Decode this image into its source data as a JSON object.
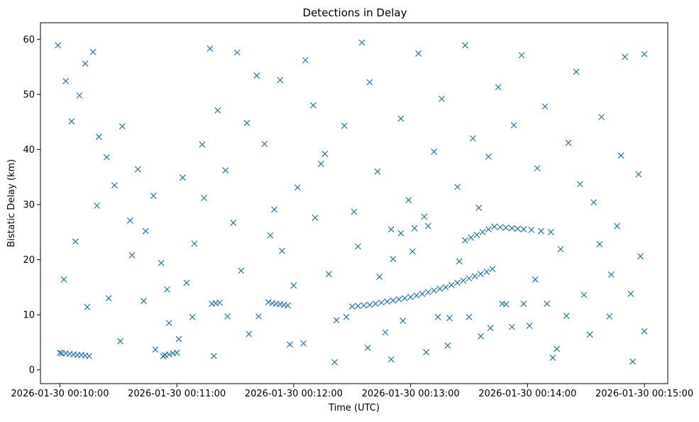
{
  "chart_data": {
    "type": "scatter",
    "title": "Detections in Delay",
    "xlabel": "Time (UTC)",
    "ylabel": "Bistatic Delay (km)",
    "x_unit": "time",
    "xlim": [
      "2026-01-30 00:09:50",
      "2026-01-30 00:15:12"
    ],
    "ylim": [
      -2.5,
      63
    ],
    "x_ticks": [
      {
        "value": "2026-01-30 00:10:00",
        "label": "2026-01-30 00:10:00"
      },
      {
        "value": "2026-01-30 00:11:00",
        "label": "2026-01-30 00:11:00"
      },
      {
        "value": "2026-01-30 00:12:00",
        "label": "2026-01-30 00:12:00"
      },
      {
        "value": "2026-01-30 00:13:00",
        "label": "2026-01-30 00:13:00"
      },
      {
        "value": "2026-01-30 00:14:00",
        "label": "2026-01-30 00:14:00"
      },
      {
        "value": "2026-01-30 00:15:00",
        "label": "2026-01-30 00:15:00"
      }
    ],
    "y_ticks": [
      0,
      10,
      20,
      30,
      40,
      50,
      60
    ],
    "grid": false,
    "marker": "x",
    "colors": {
      "series": "#1f77b4"
    },
    "series": [
      {
        "points": [
          {
            "x": "2026-01-30 00:10:00",
            "y": 3.1
          },
          {
            "x": "2026-01-30 00:10:01",
            "y": 3.0
          },
          {
            "x": "2026-01-30 00:10:03",
            "y": 3.0
          },
          {
            "x": "2026-01-30 00:10:05",
            "y": 2.9
          },
          {
            "x": "2026-01-30 00:10:07",
            "y": 2.8
          },
          {
            "x": "2026-01-30 00:10:09",
            "y": 2.7
          },
          {
            "x": "2026-01-30 00:10:11",
            "y": 2.7
          },
          {
            "x": "2026-01-30 00:10:13",
            "y": 2.6
          },
          {
            "x": "2026-01-30 00:10:15",
            "y": 2.5
          },
          {
            "x": "2026-01-30 00:10:53",
            "y": 2.5
          },
          {
            "x": "2026-01-30 00:10:54",
            "y": 2.7
          },
          {
            "x": "2026-01-30 00:10:56",
            "y": 2.8
          },
          {
            "x": "2026-01-30 00:10:58",
            "y": 3.0
          },
          {
            "x": "2026-01-30 00:11:00",
            "y": 3.1
          },
          {
            "x": "2026-01-30 00:11:18",
            "y": 12.0
          },
          {
            "x": "2026-01-30 00:11:20",
            "y": 12.1
          },
          {
            "x": "2026-01-30 00:11:22",
            "y": 12.2
          },
          {
            "x": "2026-01-30 00:11:47",
            "y": 12.3
          },
          {
            "x": "2026-01-30 00:11:49",
            "y": 12.1
          },
          {
            "x": "2026-01-30 00:11:51",
            "y": 12.0
          },
          {
            "x": "2026-01-30 00:11:53",
            "y": 11.9
          },
          {
            "x": "2026-01-30 00:11:55",
            "y": 11.8
          },
          {
            "x": "2026-01-30 00:11:57",
            "y": 11.7
          },
          {
            "x": "2026-01-30 00:12:30",
            "y": 11.5
          },
          {
            "x": "2026-01-30 00:12:33",
            "y": 11.6
          },
          {
            "x": "2026-01-30 00:12:36",
            "y": 11.7
          },
          {
            "x": "2026-01-30 00:12:39",
            "y": 11.8
          },
          {
            "x": "2026-01-30 00:12:42",
            "y": 12.0
          },
          {
            "x": "2026-01-30 00:12:45",
            "y": 12.2
          },
          {
            "x": "2026-01-30 00:12:48",
            "y": 12.4
          },
          {
            "x": "2026-01-30 00:12:51",
            "y": 12.6
          },
          {
            "x": "2026-01-30 00:12:54",
            "y": 12.8
          },
          {
            "x": "2026-01-30 00:12:57",
            "y": 13.0
          },
          {
            "x": "2026-01-30 00:13:00",
            "y": 13.2
          },
          {
            "x": "2026-01-30 00:13:03",
            "y": 13.5
          },
          {
            "x": "2026-01-30 00:13:06",
            "y": 13.8
          },
          {
            "x": "2026-01-30 00:13:09",
            "y": 14.1
          },
          {
            "x": "2026-01-30 00:13:12",
            "y": 14.4
          },
          {
            "x": "2026-01-30 00:13:15",
            "y": 14.7
          },
          {
            "x": "2026-01-30 00:13:18",
            "y": 15.0
          },
          {
            "x": "2026-01-30 00:13:21",
            "y": 15.4
          },
          {
            "x": "2026-01-30 00:13:24",
            "y": 15.8
          },
          {
            "x": "2026-01-30 00:13:27",
            "y": 16.2
          },
          {
            "x": "2026-01-30 00:13:30",
            "y": 16.6
          },
          {
            "x": "2026-01-30 00:13:33",
            "y": 17.0
          },
          {
            "x": "2026-01-30 00:13:36",
            "y": 17.4
          },
          {
            "x": "2026-01-30 00:13:39",
            "y": 17.8
          },
          {
            "x": "2026-01-30 00:13:42",
            "y": 18.3
          },
          {
            "x": "2026-01-30 00:13:28",
            "y": 23.5
          },
          {
            "x": "2026-01-30 00:13:31",
            "y": 24.0
          },
          {
            "x": "2026-01-30 00:13:34",
            "y": 24.5
          },
          {
            "x": "2026-01-30 00:13:37",
            "y": 25.0
          },
          {
            "x": "2026-01-30 00:13:40",
            "y": 25.5
          },
          {
            "x": "2026-01-30 00:13:43",
            "y": 26.0
          },
          {
            "x": "2026-01-30 00:13:46",
            "y": 25.9
          },
          {
            "x": "2026-01-30 00:13:49",
            "y": 25.8
          },
          {
            "x": "2026-01-30 00:13:52",
            "y": 25.7
          },
          {
            "x": "2026-01-30 00:13:55",
            "y": 25.6
          },
          {
            "x": "2026-01-30 00:13:58",
            "y": 25.5
          },
          {
            "x": "2026-01-30 00:14:02",
            "y": 25.4
          },
          {
            "x": "2026-01-30 00:14:07",
            "y": 25.2
          },
          {
            "x": "2026-01-30 00:14:12",
            "y": 25.0
          },
          {
            "x": "2026-01-30 00:12:50",
            "y": 25.5
          },
          {
            "x": "2026-01-30 00:12:55",
            "y": 24.8
          },
          {
            "x": "2026-01-30 00:13:02",
            "y": 25.7
          },
          {
            "x": "2026-01-30 00:13:09",
            "y": 26.1
          },
          {
            "x": "2026-01-30 00:09:59",
            "y": 58.9
          },
          {
            "x": "2026-01-30 00:10:03",
            "y": 52.4
          },
          {
            "x": "2026-01-30 00:10:06",
            "y": 45.1
          },
          {
            "x": "2026-01-30 00:10:10",
            "y": 49.8
          },
          {
            "x": "2026-01-30 00:10:13",
            "y": 55.6
          },
          {
            "x": "2026-01-30 00:10:17",
            "y": 57.7
          },
          {
            "x": "2026-01-30 00:10:20",
            "y": 42.3
          },
          {
            "x": "2026-01-30 00:10:24",
            "y": 38.6
          },
          {
            "x": "2026-01-30 00:10:28",
            "y": 33.5
          },
          {
            "x": "2026-01-30 00:10:32",
            "y": 44.2
          },
          {
            "x": "2026-01-30 00:10:36",
            "y": 27.1
          },
          {
            "x": "2026-01-30 00:10:40",
            "y": 36.4
          },
          {
            "x": "2026-01-30 00:10:44",
            "y": 25.2
          },
          {
            "x": "2026-01-30 00:10:48",
            "y": 31.6
          },
          {
            "x": "2026-01-30 00:10:52",
            "y": 19.4
          },
          {
            "x": "2026-01-30 00:10:56",
            "y": 8.5
          },
          {
            "x": "2026-01-30 00:11:01",
            "y": 5.6
          },
          {
            "x": "2026-01-30 00:11:05",
            "y": 15.8
          },
          {
            "x": "2026-01-30 00:11:09",
            "y": 22.9
          },
          {
            "x": "2026-01-30 00:11:13",
            "y": 40.9
          },
          {
            "x": "2026-01-30 00:11:17",
            "y": 58.3
          },
          {
            "x": "2026-01-30 00:11:21",
            "y": 47.1
          },
          {
            "x": "2026-01-30 00:11:25",
            "y": 36.2
          },
          {
            "x": "2026-01-30 00:11:29",
            "y": 26.7
          },
          {
            "x": "2026-01-30 00:11:33",
            "y": 18.0
          },
          {
            "x": "2026-01-30 00:11:37",
            "y": 6.5
          },
          {
            "x": "2026-01-30 00:11:41",
            "y": 53.4
          },
          {
            "x": "2026-01-30 00:11:45",
            "y": 41.0
          },
          {
            "x": "2026-01-30 00:11:50",
            "y": 29.1
          },
          {
            "x": "2026-01-30 00:11:54",
            "y": 21.6
          },
          {
            "x": "2026-01-30 00:11:58",
            "y": 4.6
          },
          {
            "x": "2026-01-30 00:12:02",
            "y": 33.1
          },
          {
            "x": "2026-01-30 00:12:06",
            "y": 56.2
          },
          {
            "x": "2026-01-30 00:12:10",
            "y": 48.0
          },
          {
            "x": "2026-01-30 00:12:14",
            "y": 37.4
          },
          {
            "x": "2026-01-30 00:12:18",
            "y": 17.4
          },
          {
            "x": "2026-01-30 00:12:22",
            "y": 9.0
          },
          {
            "x": "2026-01-30 00:12:26",
            "y": 44.3
          },
          {
            "x": "2026-01-30 00:12:31",
            "y": 28.7
          },
          {
            "x": "2026-01-30 00:12:35",
            "y": 59.4
          },
          {
            "x": "2026-01-30 00:12:39",
            "y": 52.2
          },
          {
            "x": "2026-01-30 00:12:43",
            "y": 36.0
          },
          {
            "x": "2026-01-30 00:12:47",
            "y": 6.8
          },
          {
            "x": "2026-01-30 00:12:51",
            "y": 20.1
          },
          {
            "x": "2026-01-30 00:12:55",
            "y": 45.6
          },
          {
            "x": "2026-01-30 00:12:59",
            "y": 30.8
          },
          {
            "x": "2026-01-30 00:13:04",
            "y": 57.4
          },
          {
            "x": "2026-01-30 00:13:08",
            "y": 3.2
          },
          {
            "x": "2026-01-30 00:13:12",
            "y": 39.6
          },
          {
            "x": "2026-01-30 00:13:16",
            "y": 49.2
          },
          {
            "x": "2026-01-30 00:13:20",
            "y": 9.4
          },
          {
            "x": "2026-01-30 00:13:24",
            "y": 33.2
          },
          {
            "x": "2026-01-30 00:13:28",
            "y": 58.9
          },
          {
            "x": "2026-01-30 00:13:32",
            "y": 42.0
          },
          {
            "x": "2026-01-30 00:13:36",
            "y": 6.1
          },
          {
            "x": "2026-01-30 00:13:40",
            "y": 38.7
          },
          {
            "x": "2026-01-30 00:13:45",
            "y": 51.3
          },
          {
            "x": "2026-01-30 00:13:49",
            "y": 11.9
          },
          {
            "x": "2026-01-30 00:13:53",
            "y": 44.4
          },
          {
            "x": "2026-01-30 00:13:57",
            "y": 57.1
          },
          {
            "x": "2026-01-30 00:14:01",
            "y": 8.0
          },
          {
            "x": "2026-01-30 00:14:05",
            "y": 36.6
          },
          {
            "x": "2026-01-30 00:14:09",
            "y": 47.8
          },
          {
            "x": "2026-01-30 00:14:13",
            "y": 2.2
          },
          {
            "x": "2026-01-30 00:14:17",
            "y": 21.9
          },
          {
            "x": "2026-01-30 00:14:21",
            "y": 41.2
          },
          {
            "x": "2026-01-30 00:14:25",
            "y": 54.1
          },
          {
            "x": "2026-01-30 00:14:29",
            "y": 13.6
          },
          {
            "x": "2026-01-30 00:14:34",
            "y": 30.4
          },
          {
            "x": "2026-01-30 00:14:38",
            "y": 45.9
          },
          {
            "x": "2026-01-30 00:14:42",
            "y": 9.7
          },
          {
            "x": "2026-01-30 00:14:46",
            "y": 26.1
          },
          {
            "x": "2026-01-30 00:14:50",
            "y": 56.8
          },
          {
            "x": "2026-01-30 00:14:54",
            "y": 1.5
          },
          {
            "x": "2026-01-30 00:14:58",
            "y": 20.6
          },
          {
            "x": "2026-01-30 00:15:00",
            "y": 57.3
          },
          {
            "x": "2026-01-30 00:10:02",
            "y": 16.4
          },
          {
            "x": "2026-01-30 00:10:08",
            "y": 23.3
          },
          {
            "x": "2026-01-30 00:10:14",
            "y": 11.4
          },
          {
            "x": "2026-01-30 00:10:19",
            "y": 29.8
          },
          {
            "x": "2026-01-30 00:10:25",
            "y": 13.0
          },
          {
            "x": "2026-01-30 00:10:31",
            "y": 5.2
          },
          {
            "x": "2026-01-30 00:10:37",
            "y": 20.8
          },
          {
            "x": "2026-01-30 00:10:43",
            "y": 12.5
          },
          {
            "x": "2026-01-30 00:10:49",
            "y": 3.7
          },
          {
            "x": "2026-01-30 00:10:55",
            "y": 14.6
          },
          {
            "x": "2026-01-30 00:11:03",
            "y": 34.9
          },
          {
            "x": "2026-01-30 00:11:08",
            "y": 9.6
          },
          {
            "x": "2026-01-30 00:11:14",
            "y": 31.2
          },
          {
            "x": "2026-01-30 00:11:19",
            "y": 2.5
          },
          {
            "x": "2026-01-30 00:11:26",
            "y": 9.7
          },
          {
            "x": "2026-01-30 00:11:31",
            "y": 57.6
          },
          {
            "x": "2026-01-30 00:11:36",
            "y": 44.8
          },
          {
            "x": "2026-01-30 00:11:42",
            "y": 9.7
          },
          {
            "x": "2026-01-30 00:11:48",
            "y": 24.4
          },
          {
            "x": "2026-01-30 00:11:53",
            "y": 52.6
          },
          {
            "x": "2026-01-30 00:12:00",
            "y": 15.3
          },
          {
            "x": "2026-01-30 00:12:05",
            "y": 4.8
          },
          {
            "x": "2026-01-30 00:12:11",
            "y": 27.6
          },
          {
            "x": "2026-01-30 00:12:16",
            "y": 39.2
          },
          {
            "x": "2026-01-30 00:12:21",
            "y": 1.4
          },
          {
            "x": "2026-01-30 00:12:27",
            "y": 9.6
          },
          {
            "x": "2026-01-30 00:12:33",
            "y": 22.4
          },
          {
            "x": "2026-01-30 00:12:38",
            "y": 4.0
          },
          {
            "x": "2026-01-30 00:12:44",
            "y": 16.9
          },
          {
            "x": "2026-01-30 00:12:50",
            "y": 1.9
          },
          {
            "x": "2026-01-30 00:12:56",
            "y": 8.9
          },
          {
            "x": "2026-01-30 00:13:01",
            "y": 21.5
          },
          {
            "x": "2026-01-30 00:13:07",
            "y": 27.8
          },
          {
            "x": "2026-01-30 00:13:14",
            "y": 9.6
          },
          {
            "x": "2026-01-30 00:13:19",
            "y": 4.4
          },
          {
            "x": "2026-01-30 00:13:25",
            "y": 19.7
          },
          {
            "x": "2026-01-30 00:13:30",
            "y": 9.6
          },
          {
            "x": "2026-01-30 00:13:35",
            "y": 29.4
          },
          {
            "x": "2026-01-30 00:13:41",
            "y": 7.6
          },
          {
            "x": "2026-01-30 00:13:47",
            "y": 12.0
          },
          {
            "x": "2026-01-30 00:13:52",
            "y": 7.8
          },
          {
            "x": "2026-01-30 00:13:58",
            "y": 12.0
          },
          {
            "x": "2026-01-30 00:14:04",
            "y": 16.4
          },
          {
            "x": "2026-01-30 00:14:10",
            "y": 12.0
          },
          {
            "x": "2026-01-30 00:14:15",
            "y": 3.8
          },
          {
            "x": "2026-01-30 00:14:20",
            "y": 9.8
          },
          {
            "x": "2026-01-30 00:14:27",
            "y": 33.7
          },
          {
            "x": "2026-01-30 00:14:32",
            "y": 6.4
          },
          {
            "x": "2026-01-30 00:14:37",
            "y": 22.8
          },
          {
            "x": "2026-01-30 00:14:43",
            "y": 17.3
          },
          {
            "x": "2026-01-30 00:14:48",
            "y": 38.9
          },
          {
            "x": "2026-01-30 00:14:53",
            "y": 13.8
          },
          {
            "x": "2026-01-30 00:14:57",
            "y": 35.5
          },
          {
            "x": "2026-01-30 00:15:00",
            "y": 7.0
          }
        ]
      }
    ]
  }
}
